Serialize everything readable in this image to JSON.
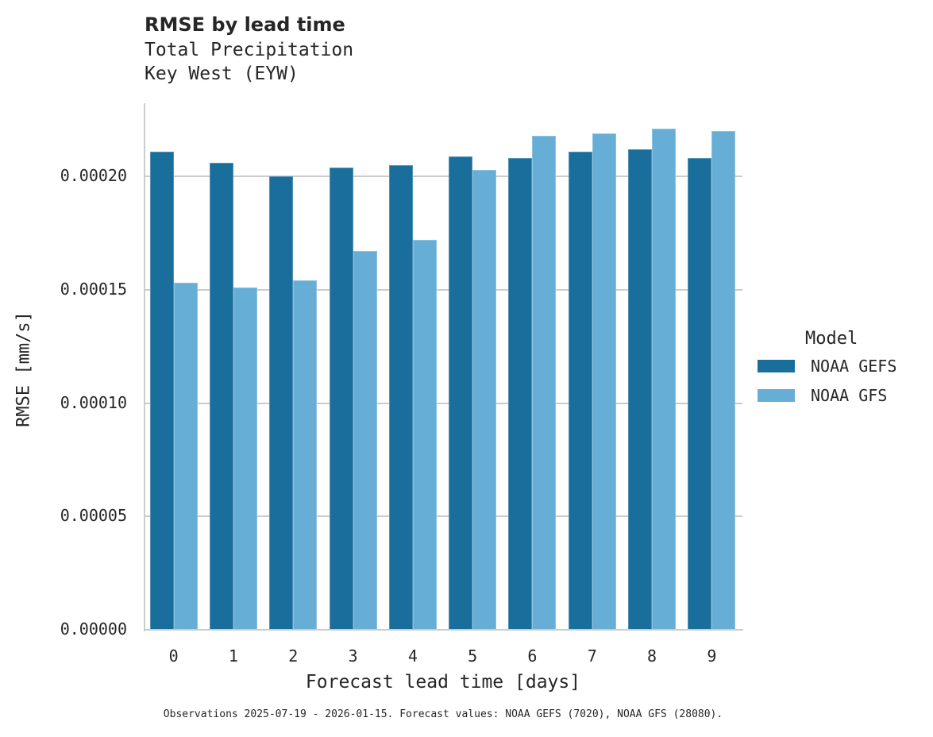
{
  "chart_data": {
    "type": "bar",
    "title": "RMSE by lead time",
    "subtitle": [
      "Total Precipitation",
      "Key West (EYW)"
    ],
    "xlabel": "Forecast lead time [days]",
    "ylabel": "RMSE [mm/s]",
    "categories": [
      "0",
      "1",
      "2",
      "3",
      "4",
      "5",
      "6",
      "7",
      "8",
      "9"
    ],
    "series": [
      {
        "name": "NOAA GEFS",
        "color": "#1a6e9c",
        "values": [
          0.000211,
          0.000206,
          0.0002,
          0.000204,
          0.000205,
          0.000209,
          0.000208,
          0.000211,
          0.000212,
          0.000208
        ]
      },
      {
        "name": "NOAA GFS",
        "color": "#67aed6",
        "values": [
          0.000153,
          0.000151,
          0.000154,
          0.000167,
          0.000172,
          0.000203,
          0.000218,
          0.000219,
          0.000221,
          0.00022
        ]
      }
    ],
    "ylim": [
      0,
      0.000232
    ],
    "yticks": [
      "0.00000",
      "0.00005",
      "0.00010",
      "0.00015",
      "0.00020"
    ],
    "grid": "y",
    "legend": {
      "title": "Model",
      "position": "right"
    },
    "footnote": "Observations 2025-07-19 - 2026-01-15. Forecast values: NOAA GEFS (7020), NOAA GFS (28080)."
  }
}
